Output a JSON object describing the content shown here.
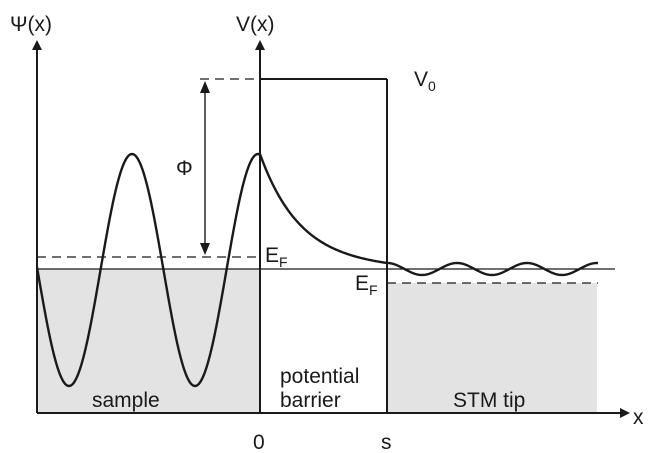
{
  "axes": {
    "psi_label": "Ψ(x)",
    "v_label": "V(x)",
    "x_label": "x",
    "tick_zero": "0",
    "tick_s": "s"
  },
  "energy": {
    "v0_label": "V",
    "v0_sub": "0",
    "phi_label": "Φ",
    "ef_sample_label": "E",
    "ef_sample_sub": "F",
    "ef_tip_label": "E",
    "ef_tip_sub": "F"
  },
  "regions": {
    "sample": "sample",
    "barrier_line1": "potential",
    "barrier_line2": "barrier",
    "tip": "STM tip"
  },
  "colors": {
    "ink": "#1a1a1a",
    "fill": "#e3e3e3"
  }
}
